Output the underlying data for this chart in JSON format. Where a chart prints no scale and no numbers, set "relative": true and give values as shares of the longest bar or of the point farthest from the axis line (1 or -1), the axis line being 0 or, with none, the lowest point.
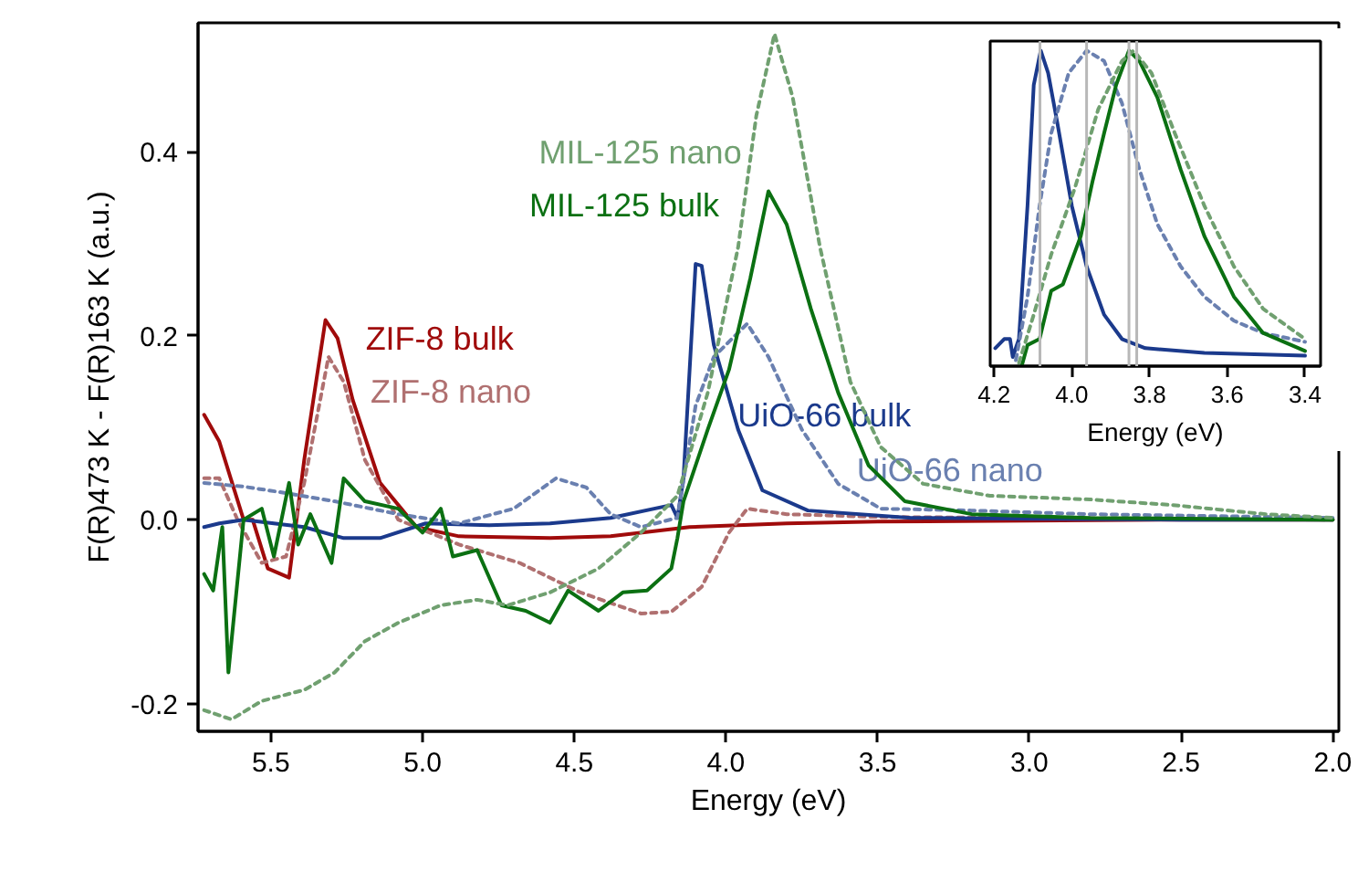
{
  "chart_data": [
    {
      "type": "line",
      "xlabel": "Energy (eV)",
      "ylabel": "F(R)473 K - F(R)163 K (a.u.)",
      "xlim": [
        5.74,
        1.98
      ],
      "ylim": [
        -0.23,
        0.54
      ],
      "xticks": [
        5.5,
        {
          "value": 5.0,
          "label": "5.0"
        },
        4.5,
        {
          "value": 4.0,
          "label": "4.0"
        },
        3.5,
        {
          "value": 3.0,
          "label": "3.0"
        },
        2.5,
        {
          "value": 2.0,
          "label": "2.0"
        }
      ],
      "yticks": [
        {
          "value": -0.2,
          "label": "-0.2"
        },
        {
          "value": 0,
          "label": "0.0"
        },
        0.2,
        0.4
      ],
      "grid": false,
      "series": [
        {
          "name": "ZIF-8 bulk",
          "color": "#a00b0b",
          "line_style": "solid",
          "x": [
            5.72,
            5.67,
            5.59,
            5.56,
            5.51,
            5.44,
            5.39,
            5.32,
            5.28,
            5.23,
            5.14,
            5.02,
            4.88,
            4.58,
            4.38,
            4.12,
            3.8,
            3.5,
            3.0,
            2.5,
            2.0
          ],
          "values": [
            0.114,
            0.085,
            0.0,
            0.0,
            -0.053,
            -0.063,
            0.065,
            0.217,
            0.197,
            0.13,
            0.04,
            -0.008,
            -0.018,
            -0.02,
            -0.018,
            -0.008,
            -0.004,
            -0.002,
            -0.001,
            0.0,
            0.0
          ]
        },
        {
          "name": "ZIF-8 nano",
          "color": "#b07070",
          "line_style": "dashed",
          "x": [
            5.72,
            5.67,
            5.61,
            5.53,
            5.45,
            5.39,
            5.31,
            5.26,
            5.19,
            5.08,
            4.88,
            4.68,
            4.48,
            4.28,
            4.18,
            4.08,
            3.99,
            3.93,
            3.8,
            3.5,
            3.0,
            2.5,
            2.0
          ],
          "values": [
            0.045,
            0.045,
            0.0,
            -0.047,
            -0.04,
            0.04,
            0.177,
            0.15,
            0.065,
            0.0,
            -0.027,
            -0.047,
            -0.079,
            -0.102,
            -0.1,
            -0.073,
            -0.014,
            0.012,
            0.006,
            0.003,
            0.002,
            0.001,
            0.0
          ]
        },
        {
          "name": "UiO-66 bulk",
          "color": "#1b3a8c",
          "line_style": "solid",
          "x": [
            5.72,
            5.67,
            5.59,
            5.39,
            5.26,
            5.14,
            4.99,
            4.78,
            4.58,
            4.38,
            4.18,
            4.16,
            4.14,
            4.1,
            4.08,
            4.04,
            3.96,
            3.88,
            3.73,
            3.39,
            3.0,
            2.5,
            2.0
          ],
          "values": [
            -0.008,
            -0.004,
            0.0,
            -0.008,
            -0.02,
            -0.02,
            -0.004,
            -0.006,
            -0.004,
            0.002,
            0.016,
            0.002,
            0.045,
            0.278,
            0.276,
            0.19,
            0.098,
            0.032,
            0.01,
            0.002,
            0.001,
            0.0,
            0.0
          ]
        },
        {
          "name": "UiO-66 nano",
          "color": "#6a80b0",
          "line_style": "dashed",
          "x": [
            5.72,
            5.59,
            5.47,
            5.29,
            5.08,
            4.88,
            4.7,
            4.56,
            4.46,
            4.38,
            4.28,
            4.16,
            4.1,
            4.04,
            3.93,
            3.86,
            3.75,
            3.63,
            3.49,
            3.19,
            2.8,
            2.4,
            2.0
          ],
          "values": [
            0.04,
            0.036,
            0.03,
            0.02,
            0.006,
            -0.004,
            0.012,
            0.045,
            0.035,
            0.006,
            -0.008,
            0.002,
            0.124,
            0.177,
            0.213,
            0.177,
            0.098,
            0.039,
            0.012,
            0.01,
            0.006,
            0.004,
            0.002
          ]
        },
        {
          "name": "MIL-125 bulk",
          "color": "#0b7012",
          "line_style": "solid",
          "x": [
            5.72,
            5.69,
            5.66,
            5.64,
            5.59,
            5.53,
            5.49,
            5.44,
            5.41,
            5.37,
            5.3,
            5.26,
            5.19,
            5.08,
            5.0,
            4.94,
            4.9,
            4.82,
            4.74,
            4.66,
            4.58,
            4.52,
            4.42,
            4.34,
            4.26,
            4.18,
            4.16,
            4.14,
            4.06,
            3.99,
            3.92,
            3.86,
            3.8,
            3.72,
            3.63,
            3.53,
            3.41,
            3.19,
            2.8,
            2.4,
            2.0
          ],
          "values": [
            -0.059,
            -0.077,
            -0.008,
            -0.166,
            0.0,
            0.012,
            -0.04,
            0.04,
            -0.027,
            0.006,
            -0.047,
            0.045,
            0.02,
            0.012,
            -0.014,
            0.012,
            -0.04,
            -0.033,
            -0.093,
            -0.099,
            -0.112,
            -0.077,
            -0.099,
            -0.079,
            -0.077,
            -0.053,
            -0.02,
            0.02,
            0.098,
            0.163,
            0.262,
            0.357,
            0.321,
            0.229,
            0.138,
            0.059,
            0.02,
            0.006,
            0.002,
            0.001,
            0.0
          ]
        },
        {
          "name": "MIL-125 nano",
          "color": "#70a070",
          "line_style": "dashed",
          "x": [
            5.72,
            5.63,
            5.53,
            5.39,
            5.29,
            5.19,
            5.08,
            4.94,
            4.82,
            4.72,
            4.58,
            4.42,
            4.28,
            4.16,
            4.06,
            3.96,
            3.9,
            3.84,
            3.78,
            3.69,
            3.59,
            3.49,
            3.35,
            3.13,
            2.8,
            2.53,
            2.22,
            2.0
          ],
          "values": [
            -0.207,
            -0.217,
            -0.197,
            -0.185,
            -0.166,
            -0.132,
            -0.112,
            -0.093,
            -0.087,
            -0.093,
            -0.079,
            -0.053,
            -0.014,
            0.026,
            0.138,
            0.296,
            0.439,
            0.528,
            0.459,
            0.296,
            0.15,
            0.079,
            0.039,
            0.026,
            0.022,
            0.016,
            0.006,
            0.002
          ]
        }
      ]
    },
    {
      "type": "line",
      "relative": true,
      "xlabel": "Energy (eV)",
      "xlim": [
        4.21,
        3.36
      ],
      "xticks": [
        4.2,
        {
          "value": 4.0,
          "label": "4.0"
        },
        3.8,
        3.6,
        3.4
      ],
      "tick_labels": "x",
      "grid": false,
      "ref_lines": [
        {
          "axis": "x",
          "value": 4.082,
          "label": null,
          "color": "#b8b8b8"
        },
        {
          "axis": "x",
          "value": 3.962,
          "label": null,
          "color": "#b8b8b8"
        },
        {
          "axis": "x",
          "value": 3.853,
          "label": null,
          "color": "#b8b8b8"
        },
        {
          "axis": "x",
          "value": 3.833,
          "label": null,
          "color": "#b8b8b8"
        }
      ],
      "series": [
        {
          "color": "#1b3a8c",
          "line_style": "solid",
          "x": [
            4.197,
            4.174,
            4.159,
            4.152,
            4.136,
            4.114,
            4.098,
            4.08,
            4.061,
            4.038,
            4.0,
            3.962,
            3.917,
            3.871,
            3.811,
            3.659,
            3.4
          ],
          "values": [
            0.057,
            0.086,
            0.086,
            0.029,
            0.086,
            0.508,
            0.891,
            1,
            0.929,
            0.776,
            0.508,
            0.316,
            0.163,
            0.086,
            0.057,
            0.042,
            0.033
          ]
        },
        {
          "color": "#6a80b0",
          "line_style": "dashed",
          "x": [
            4.144,
            4.114,
            4.083,
            4.053,
            4.008,
            3.962,
            3.917,
            3.871,
            3.826,
            3.78,
            3.72,
            3.659,
            3.583,
            3.508,
            3.4
          ],
          "values": [
            0.019,
            0.22,
            0.508,
            0.738,
            0.929,
            1,
            0.967,
            0.833,
            0.623,
            0.45,
            0.316,
            0.22,
            0.144,
            0.105,
            0.077
          ]
        },
        {
          "color": "#0b7012",
          "line_style": "solid",
          "x": [
            4.129,
            4.114,
            4.083,
            4.053,
            4.023,
            3.977,
            3.947,
            3.917,
            3.886,
            3.853,
            3.826,
            3.78,
            3.72,
            3.659,
            3.583,
            3.508,
            3.4
          ],
          "values": [
            0,
            0.067,
            0.086,
            0.239,
            0.259,
            0.412,
            0.584,
            0.738,
            0.891,
            1,
            0.967,
            0.852,
            0.623,
            0.412,
            0.22,
            0.105,
            0.048
          ]
        },
        {
          "color": "#70a070",
          "line_style": "dashed",
          "x": [
            4.136,
            4.098,
            4.053,
            3.992,
            3.932,
            3.871,
            3.841,
            3.795,
            3.735,
            3.659,
            3.583,
            3.508,
            3.4
          ],
          "values": [
            0.01,
            0.163,
            0.354,
            0.565,
            0.814,
            0.967,
            1,
            0.929,
            0.738,
            0.508,
            0.316,
            0.182,
            0.086
          ]
        }
      ]
    }
  ]
}
